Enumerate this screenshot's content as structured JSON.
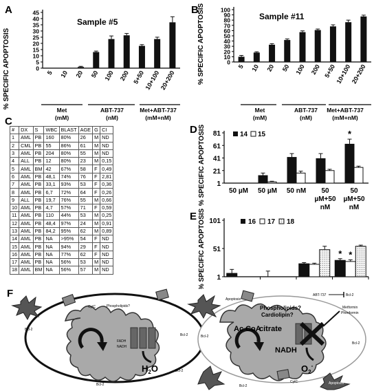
{
  "panels": {
    "A": {
      "letter": "A",
      "title": "Sample #5",
      "ylabel": "% SPECIFIC APOPTOSIS",
      "yticks": [
        "0",
        "5",
        "10",
        "15",
        "20",
        "25",
        "30",
        "35",
        "40",
        "45"
      ],
      "groups": [
        {
          "label": "Met",
          "unit": "(mM)"
        },
        {
          "label": "ABT-737",
          "unit": "(nM)"
        },
        {
          "label": "Met+ABT-737",
          "unit": "(mM+nM)"
        }
      ]
    },
    "B": {
      "letter": "B",
      "title": "Sample #11",
      "ylabel": "% SPECIFIC APOPTOSIS",
      "yticks": [
        "0",
        "10",
        "20",
        "30",
        "40",
        "50",
        "60",
        "70",
        "80",
        "90",
        "100"
      ],
      "groups": [
        {
          "label": "Met",
          "unit": "(mM)"
        },
        {
          "label": "ABT-737",
          "unit": "(nM)"
        },
        {
          "label": "Met+ABT-737",
          "unit": "(mM+nM)"
        }
      ]
    },
    "C": {
      "letter": "C",
      "headers": [
        "#",
        "DX",
        "S",
        "WBC",
        "BLAST",
        "AGE",
        "G",
        "CI"
      ],
      "rows": [
        [
          "1",
          "AML",
          "PB",
          "160",
          "80%",
          "26",
          "M",
          "ND"
        ],
        [
          "2",
          "CML",
          "PB",
          "55",
          "86%",
          "61",
          "M",
          "ND"
        ],
        [
          "3",
          "AML",
          "PB",
          "204",
          "80%",
          "55",
          "M",
          "ND"
        ],
        [
          "4",
          "ALL",
          "PB",
          "12",
          "80%",
          "23",
          "M",
          "0,15"
        ],
        [
          "5",
          "AML",
          "BM",
          "42",
          "67%",
          "58",
          "F",
          "0,49"
        ],
        [
          "6",
          "AML",
          "PB",
          "48,1",
          "74%",
          "76",
          "F",
          "2,81"
        ],
        [
          "7",
          "AML",
          "PB",
          "33,1",
          "93%",
          "53",
          "F",
          "0,36"
        ],
        [
          "8",
          "AML",
          "PB",
          "6,7",
          "72%",
          "64",
          "F",
          "0,26"
        ],
        [
          "9",
          "ALL",
          "PB",
          "19,7",
          "76%",
          "55",
          "M",
          "0,66"
        ],
        [
          "10",
          "AML",
          "PB",
          "4,7",
          "57%",
          "71",
          "F",
          "0,59"
        ],
        [
          "11",
          "AML",
          "PB",
          "110",
          "44%",
          "53",
          "M",
          "0,25"
        ],
        [
          "12",
          "AML",
          "PB",
          "48,4",
          "97%",
          "24",
          "M",
          "0,91"
        ],
        [
          "13",
          "AML",
          "PB",
          "84,2",
          "95%",
          "62",
          "M",
          "0,89"
        ],
        [
          "14",
          "AML",
          "PB",
          "NA",
          ">95%",
          "54",
          "F",
          "ND"
        ],
        [
          "15",
          "AML",
          "PB",
          "NA",
          "94%",
          "29",
          "F",
          "ND"
        ],
        [
          "16",
          "AML",
          "PB",
          "NA",
          "77%",
          "62",
          "F",
          "ND"
        ],
        [
          "17",
          "AML",
          "PB",
          "NA",
          "56%",
          "53",
          "M",
          "ND"
        ],
        [
          "18",
          "AML",
          "BM",
          "NA",
          "56%",
          "57",
          "M",
          "ND"
        ]
      ]
    },
    "D": {
      "letter": "D",
      "ylabel": "% SPECIFIC APOPTOSIS",
      "yticks": [
        "1",
        "21",
        "41",
        "61",
        "81"
      ],
      "legend": [
        "14",
        "15"
      ],
      "categories": [
        [
          "50 µM"
        ],
        [
          "50 µM"
        ],
        [
          "50 nM"
        ],
        [
          "50",
          "µM+50",
          "nM"
        ],
        [
          "50",
          "µM+50",
          "nM"
        ]
      ],
      "star": "*"
    },
    "E": {
      "letter": "E",
      "ylabel": "% SPECIFIC APOPTOSIS",
      "yticks": [
        "1",
        "51",
        "101"
      ],
      "legend": [
        "16",
        "17",
        "18"
      ],
      "star": "*"
    },
    "F": {
      "letter": "F",
      "labels": {
        "phospholipids": "Phospholipids?",
        "cardiolipin": "Cardiolipin?",
        "abt": "ABT-737",
        "bcl2": "Bcl-2",
        "metformin": "Metformin",
        "phenformin": "Phenformin",
        "accoa": "Ac CoA",
        "citrate": "citrate",
        "nadh": "NADH",
        "h2o_left": "H",
        "h2o_sub": "2",
        "h2o_right": "O",
        "o2_left": "O",
        "o2_sub": "2",
        "o2_sup": "-",
        "cytc": "CytC",
        "apoptosis": "Apoptosis",
        "fadh": "FADH",
        "smallnadh": "NADH"
      }
    }
  },
  "chart_data": [
    {
      "type": "bar",
      "panel": "A",
      "title": "Sample #5",
      "ylabel": "% SPECIFIC APOPTOSIS",
      "ylim": [
        0,
        45
      ],
      "categories": [
        "5",
        "10",
        "20",
        "50",
        "100",
        "200",
        "5+50",
        "10+100",
        "20+200"
      ],
      "values": [
        0,
        0,
        1,
        13,
        23.5,
        26.5,
        18,
        23.5,
        37
      ],
      "errors": [
        0,
        0,
        0.5,
        0.8,
        2.5,
        1.5,
        1,
        1.5,
        4.5
      ]
    },
    {
      "type": "bar",
      "panel": "B",
      "title": "Sample #11",
      "ylabel": "% SPECIFIC APOPTOSIS",
      "ylim": [
        0,
        100
      ],
      "categories": [
        "5",
        "10",
        "20",
        "50",
        "100",
        "200",
        "5+50",
        "10+100",
        "20+200"
      ],
      "values": [
        10,
        18,
        33,
        42,
        57,
        61,
        68,
        76,
        87
      ],
      "errors": [
        2.5,
        1.5,
        2,
        2,
        2.5,
        2,
        3,
        4,
        2.5
      ]
    },
    {
      "type": "bar",
      "panel": "D",
      "ylabel": "% SPECIFIC APOPTOSIS",
      "ylim": [
        1,
        81
      ],
      "categories": [
        "50 µM",
        "50 µM",
        "50 nM",
        "50 µM+50 nM",
        "50 µM+50 nM"
      ],
      "series": [
        {
          "name": "14",
          "values": [
            0,
            12,
            41,
            39,
            62
          ],
          "errors": [
            0,
            4,
            6,
            8,
            8
          ]
        },
        {
          "name": "15",
          "values": [
            0,
            2,
            16,
            20,
            25
          ],
          "errors": [
            0,
            1,
            3,
            2,
            2
          ]
        }
      ]
    },
    {
      "type": "bar",
      "panel": "E",
      "ylabel": "% SPECIFIC APOPTOSIS",
      "ylim": [
        1,
        101
      ],
      "series": [
        {
          "name": "16",
          "values": [
            6,
            0,
            23,
            29
          ],
          "errors": [
            7,
            10,
            2,
            3
          ]
        },
        {
          "name": "17",
          "values": [
            0,
            0,
            22,
            27
          ],
          "errors": [
            0,
            0,
            2,
            3
          ]
        },
        {
          "name": "18",
          "values": [
            0,
            0,
            48,
            54
          ],
          "errors": [
            0,
            0,
            6,
            2
          ]
        }
      ]
    }
  ]
}
